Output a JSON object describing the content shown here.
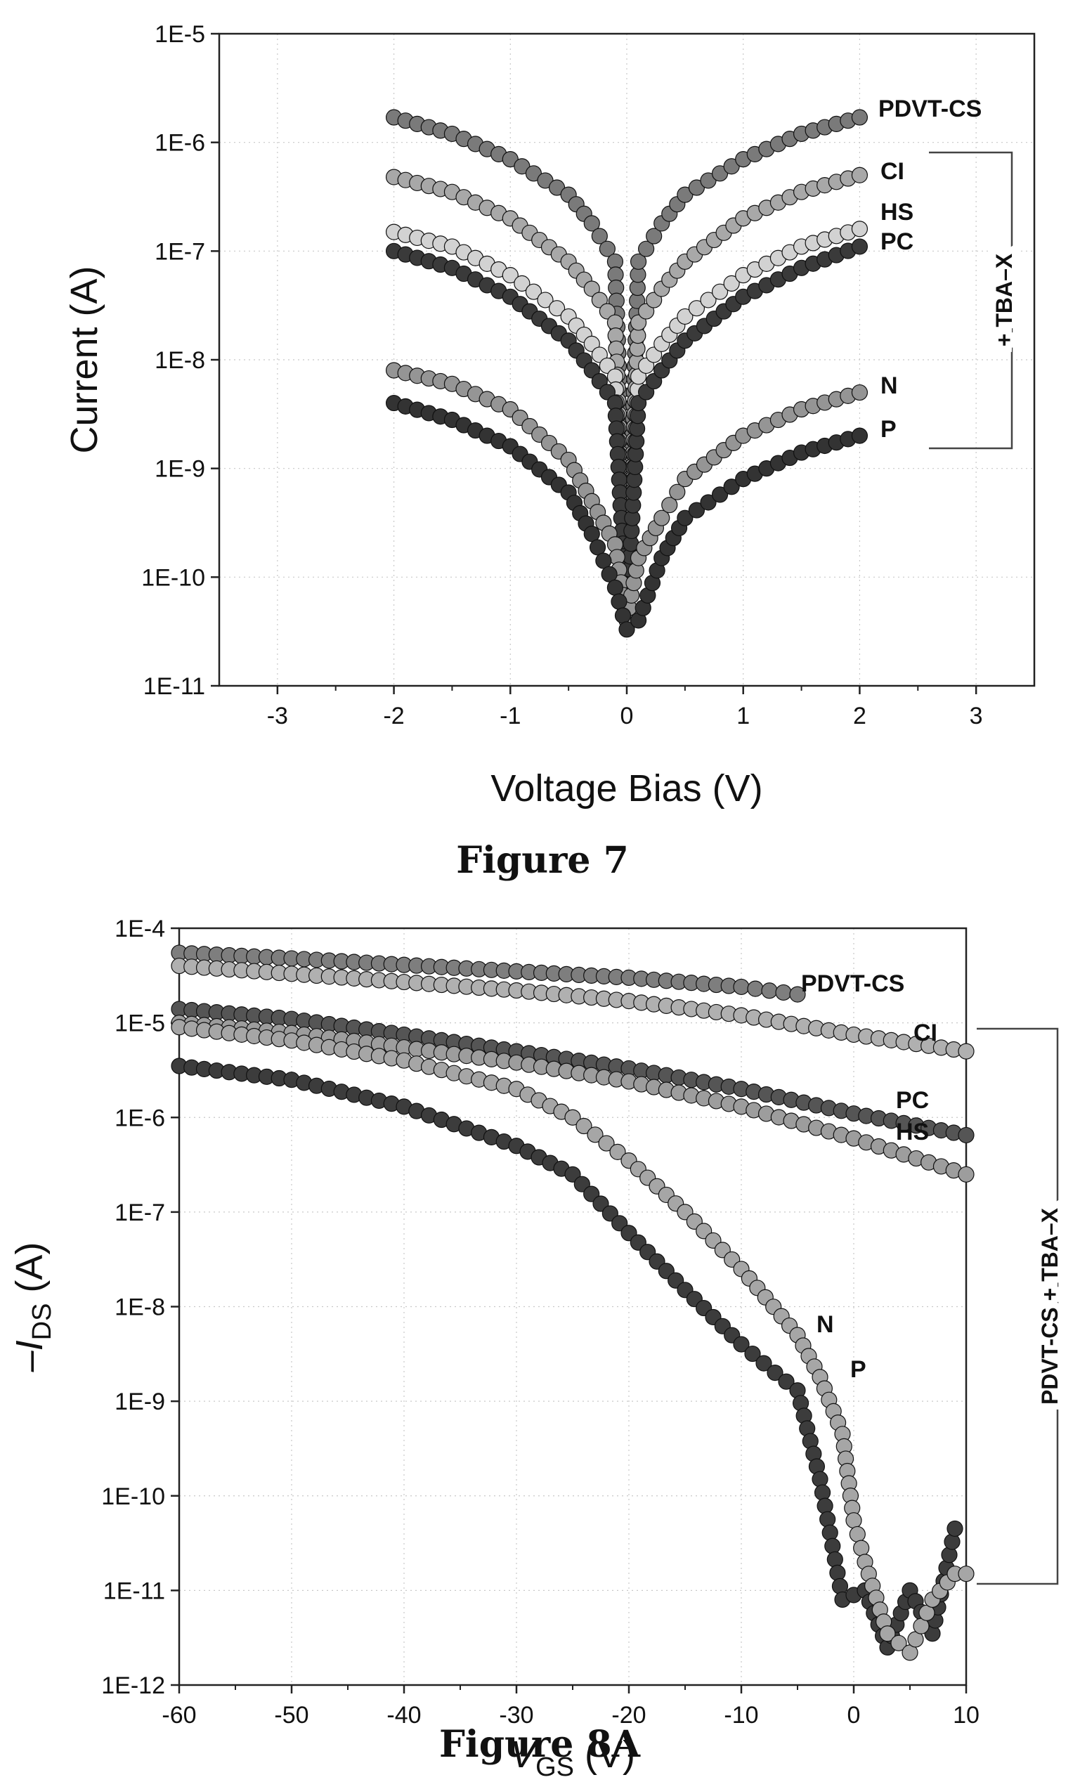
{
  "chart_data": [
    {
      "type": "scatter",
      "caption": "Figure 7",
      "xlabel": "Voltage Bias (V)",
      "ylabel": "Current (A)",
      "xlim": [
        -3.5,
        3.5
      ],
      "ylim_log10": [
        -11,
        -5
      ],
      "yscale": "log",
      "grid": "dotted",
      "x_ticks": [
        "-3",
        "-2",
        "-1",
        "0",
        "1",
        "2",
        "3"
      ],
      "x_tick_values": [
        -3,
        -2,
        -1,
        0,
        1,
        2,
        3
      ],
      "y_ticks": [
        "1E-11",
        "1E-10",
        "1E-9",
        "1E-8",
        "1E-7",
        "1E-6",
        "1E-5"
      ],
      "group_label": "+ TBA–X",
      "series": [
        {
          "name": "PDVT-CS",
          "color": "#7a7a7a",
          "x": [
            -2,
            -1.5,
            -1,
            -0.5,
            -0.3,
            -0.1,
            0,
            0.1,
            0.3,
            0.5,
            1,
            1.5,
            2
          ],
          "y": [
            1.7e-06,
            1.2e-06,
            7e-07,
            3.3e-07,
            1.8e-07,
            8e-08,
            6e-11,
            8e-08,
            1.8e-07,
            3.3e-07,
            7e-07,
            1.2e-06,
            1.7e-06
          ]
        },
        {
          "name": "CI",
          "color": "#a8a8a8",
          "x": [
            -2,
            -1.5,
            -1,
            -0.5,
            -0.3,
            -0.1,
            0,
            0.1,
            0.3,
            0.5,
            1,
            1.5,
            2
          ],
          "y": [
            4.8e-07,
            3.5e-07,
            2e-07,
            8e-08,
            4.5e-08,
            2.2e-08,
            5e-11,
            2.2e-08,
            4.5e-08,
            8e-08,
            2e-07,
            3.5e-07,
            5e-07
          ]
        },
        {
          "name": "HS",
          "color": "#d2d2d2",
          "x": [
            -2,
            -1.5,
            -1,
            -0.5,
            -0.3,
            -0.1,
            0,
            0.1,
            0.3,
            0.5,
            1,
            1.5,
            2
          ],
          "y": [
            1.5e-07,
            1.1e-07,
            6e-08,
            2.5e-08,
            1.4e-08,
            7e-09,
            5e-11,
            7e-09,
            1.4e-08,
            2.5e-08,
            6e-08,
            1.1e-07,
            1.6e-07
          ]
        },
        {
          "name": "PC",
          "color": "#3a3a3a",
          "x": [
            -2,
            -1.5,
            -1,
            -0.5,
            -0.3,
            -0.1,
            0,
            0.1,
            0.3,
            0.5,
            1,
            1.5,
            2
          ],
          "y": [
            1e-07,
            7e-08,
            3.8e-08,
            1.5e-08,
            8e-09,
            4e-09,
            4e-11,
            4e-09,
            8e-09,
            1.5e-08,
            3.8e-08,
            7e-08,
            1.1e-07
          ]
        },
        {
          "name": "N",
          "color": "#959595",
          "x": [
            -2,
            -1.5,
            -1,
            -0.5,
            -0.3,
            -0.1,
            0,
            0.1,
            0.3,
            0.5,
            1,
            1.5,
            2
          ],
          "y": [
            8e-09,
            6e-09,
            3.5e-09,
            1.2e-09,
            5e-10,
            2e-10,
            4e-11,
            1.5e-10,
            3.5e-10,
            8e-10,
            2e-09,
            3.5e-09,
            5e-09
          ]
        },
        {
          "name": "P",
          "color": "#333333",
          "x": [
            -2,
            -1.5,
            -1,
            -0.5,
            -0.3,
            -0.1,
            0,
            0.1,
            0.3,
            0.5,
            1,
            1.5,
            2
          ],
          "y": [
            4e-09,
            2.8e-09,
            1.6e-09,
            6e-10,
            2.5e-10,
            8e-11,
            3.3e-11,
            4e-11,
            1.5e-10,
            3.5e-10,
            8e-10,
            1.4e-09,
            2e-09
          ]
        }
      ]
    },
    {
      "type": "scatter",
      "caption": "Figure 8A",
      "xlabel": "V",
      "xlabel_sub": "GS",
      "xlabel_unit": " (V)",
      "ylabel": "–I",
      "ylabel_sub": "DS",
      "ylabel_unit": " (A)",
      "xlim": [
        -60,
        10
      ],
      "ylim_log10": [
        -12,
        -4
      ],
      "yscale": "log",
      "grid": "dotted",
      "x_ticks": [
        "-60",
        "-50",
        "-40",
        "-30",
        "-20",
        "-10",
        "0",
        "10"
      ],
      "x_tick_values": [
        -60,
        -50,
        -40,
        -30,
        -20,
        -10,
        0,
        10
      ],
      "y_ticks": [
        "1E-12",
        "1E-11",
        "1E-10",
        "1E-9",
        "1E-8",
        "1E-7",
        "1E-6",
        "1E-5",
        "1E-4"
      ],
      "group_label": "PDVT-CS + TBA–X",
      "series": [
        {
          "name": "PDVT-CS",
          "color": "#7e7e7e",
          "x": [
            -60,
            -50,
            -40,
            -30,
            -20,
            -10,
            -5
          ],
          "y": [
            5.5e-05,
            4.8e-05,
            4.1e-05,
            3.5e-05,
            3e-05,
            2.4e-05,
            2e-05
          ]
        },
        {
          "name": "CI",
          "color": "#b0b0b0",
          "x": [
            -60,
            -50,
            -40,
            -30,
            -20,
            -10,
            0,
            10
          ],
          "y": [
            4e-05,
            3.3e-05,
            2.7e-05,
            2.2e-05,
            1.7e-05,
            1.2e-05,
            7.5e-06,
            5e-06
          ]
        },
        {
          "name": "PC",
          "color": "#555555",
          "x": [
            -60,
            -50,
            -40,
            -30,
            -20,
            -10,
            0,
            10
          ],
          "y": [
            1.4e-05,
            1.1e-05,
            7.5e-06,
            5e-06,
            3.3e-06,
            2e-06,
            1.1e-06,
            6.5e-07
          ]
        },
        {
          "name": "HS",
          "color": "#9d9d9d",
          "x": [
            -60,
            -50,
            -40,
            -30,
            -20,
            -10,
            0,
            10
          ],
          "y": [
            1e-05,
            7.8e-06,
            5.5e-06,
            3.8e-06,
            2.4e-06,
            1.3e-06,
            6e-07,
            2.5e-07
          ]
        },
        {
          "name": "N",
          "color": "#3c3c3c",
          "x": [
            -60,
            -50,
            -40,
            -30,
            -25,
            -20,
            -15,
            -10,
            -7,
            -5,
            -3,
            -1,
            1,
            3,
            5,
            7,
            9
          ],
          "y": [
            3.5e-06,
            2.5e-06,
            1.3e-06,
            5e-07,
            2.5e-07,
            6e-08,
            1.5e-08,
            4e-09,
            2e-09,
            1.3e-09,
            1.5e-10,
            8e-12,
            1e-11,
            2.5e-12,
            1e-11,
            3.5e-12,
            4.5e-11
          ]
        },
        {
          "name": "P",
          "color": "#a6a6a6",
          "x": [
            -60,
            -50,
            -40,
            -30,
            -25,
            -20,
            -15,
            -10,
            -5,
            -3,
            -1,
            0,
            1,
            3,
            5,
            7,
            9,
            10
          ],
          "y": [
            9e-06,
            6.5e-06,
            4e-06,
            2e-06,
            1e-06,
            3.5e-07,
            1e-07,
            2.5e-08,
            5e-09,
            1.8e-09,
            4.5e-10,
            5.5e-11,
            2e-11,
            3.5e-12,
            2.2e-12,
            8e-12,
            1.5e-11,
            1.5e-11
          ]
        }
      ]
    }
  ]
}
